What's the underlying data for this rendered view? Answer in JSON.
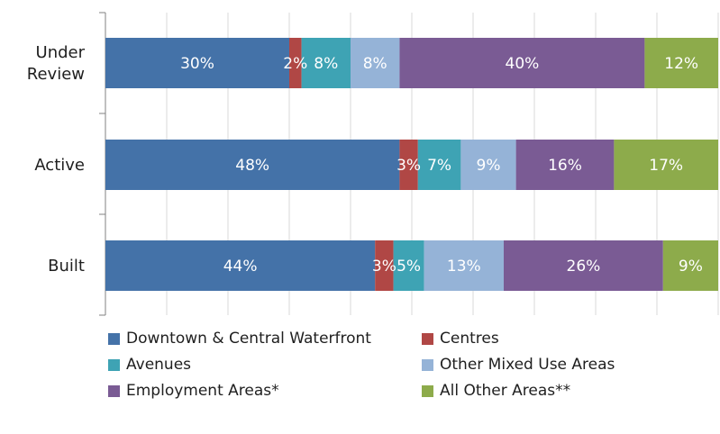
{
  "chart_data": {
    "type": "bar",
    "orientation": "horizontal",
    "stacked": true,
    "normalized": true,
    "title": "",
    "xlabel": "",
    "ylabel": "",
    "xlim": [
      0,
      100
    ],
    "grid": "vertical",
    "legend_position": "bottom",
    "categories": [
      "Under Review",
      "Active",
      "Built"
    ],
    "category_lines": [
      [
        "Under",
        "Review"
      ],
      [
        "Active"
      ],
      [
        "Built"
      ]
    ],
    "series": [
      {
        "name": "Downtown & Central Waterfront",
        "color": "#4472a8",
        "values": [
          30,
          48,
          44
        ],
        "labels": [
          "30%",
          "48%",
          "44%"
        ]
      },
      {
        "name": "Centres",
        "color": "#b04745",
        "values": [
          2,
          3,
          3
        ],
        "labels": [
          "2%",
          "3%",
          "3%"
        ]
      },
      {
        "name": "Avenues",
        "color": "#3ea3b4",
        "values": [
          8,
          7,
          5
        ],
        "labels": [
          "8%",
          "7%",
          "5%"
        ]
      },
      {
        "name": "Other Mixed Use Areas",
        "color": "#95b3d7",
        "values": [
          8,
          9,
          13
        ],
        "labels": [
          "8%",
          "9%",
          "13%"
        ]
      },
      {
        "name": "Employment Areas*",
        "color": "#7a5b94",
        "values": [
          40,
          16,
          26
        ],
        "labels": [
          "40%",
          "16%",
          "26%"
        ]
      },
      {
        "name": "All Other Areas**",
        "color": "#8dab4b",
        "values": [
          12,
          17,
          9
        ],
        "labels": [
          "12%",
          "17%",
          "9%"
        ]
      }
    ]
  }
}
